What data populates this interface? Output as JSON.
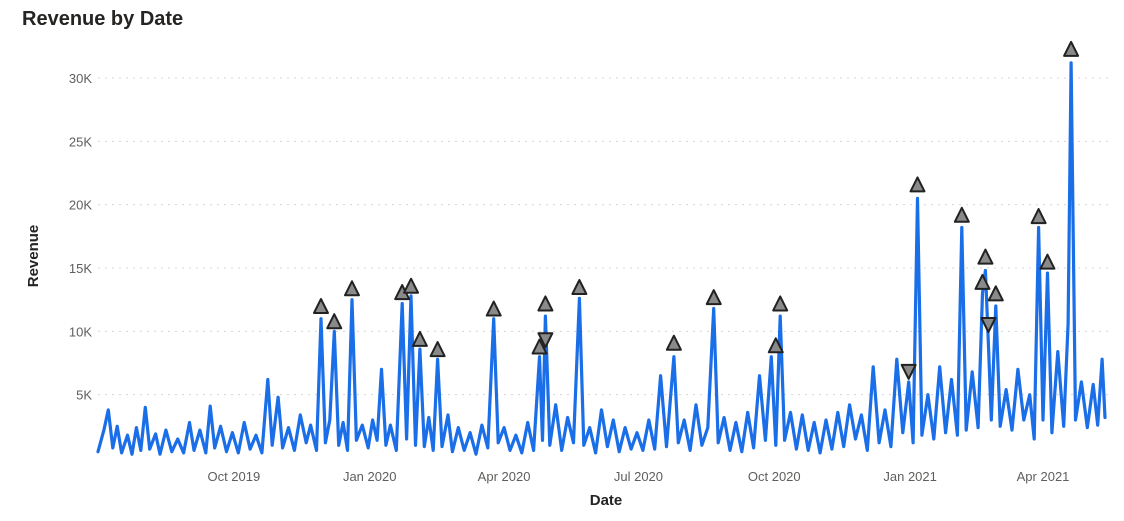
{
  "chart_data": {
    "type": "line",
    "title": "Revenue by Date",
    "xlabel": "Date",
    "ylabel": "Revenue",
    "ylim": [
      0,
      33000
    ],
    "xlim": [
      "2019-07-01",
      "2021-05-15"
    ],
    "yticks": [
      {
        "value": 5000,
        "label": "5K"
      },
      {
        "value": 10000,
        "label": "10K"
      },
      {
        "value": 15000,
        "label": "15K"
      },
      {
        "value": 20000,
        "label": "20K"
      },
      {
        "value": 25000,
        "label": "25K"
      },
      {
        "value": 30000,
        "label": "30K"
      }
    ],
    "xticks": [
      {
        "date": "2019-10-01",
        "label": "Oct 2019"
      },
      {
        "date": "2020-01-01",
        "label": "Jan 2020"
      },
      {
        "date": "2020-04-01",
        "label": "Apr 2020"
      },
      {
        "date": "2020-07-01",
        "label": "Jul 2020"
      },
      {
        "date": "2020-10-01",
        "label": "Oct 2020"
      },
      {
        "date": "2021-01-01",
        "label": "Jan 2021"
      },
      {
        "date": "2021-04-01",
        "label": "Apr 2021"
      }
    ],
    "grid": true,
    "colors": {
      "line": "#1a6ee8",
      "marker_fill": "#8a8a8a",
      "marker_stroke": "#222222",
      "grid": "#d4d4d4"
    },
    "series": [
      {
        "values": [
          [
            "2019-07-01",
            500
          ],
          [
            "2019-07-05",
            2200
          ],
          [
            "2019-07-08",
            3800
          ],
          [
            "2019-07-11",
            800
          ],
          [
            "2019-07-14",
            2500
          ],
          [
            "2019-07-17",
            400
          ],
          [
            "2019-07-21",
            1800
          ],
          [
            "2019-07-24",
            300
          ],
          [
            "2019-07-27",
            2400
          ],
          [
            "2019-07-30",
            600
          ],
          [
            "2019-08-02",
            4000
          ],
          [
            "2019-08-05",
            700
          ],
          [
            "2019-08-09",
            1900
          ],
          [
            "2019-08-12",
            300
          ],
          [
            "2019-08-16",
            2200
          ],
          [
            "2019-08-20",
            500
          ],
          [
            "2019-08-24",
            1500
          ],
          [
            "2019-08-28",
            400
          ],
          [
            "2019-09-01",
            2800
          ],
          [
            "2019-09-04",
            600
          ],
          [
            "2019-09-08",
            2200
          ],
          [
            "2019-09-12",
            400
          ],
          [
            "2019-09-15",
            4100
          ],
          [
            "2019-09-18",
            800
          ],
          [
            "2019-09-22",
            2500
          ],
          [
            "2019-09-26",
            500
          ],
          [
            "2019-09-30",
            2000
          ],
          [
            "2019-10-04",
            400
          ],
          [
            "2019-10-08",
            2800
          ],
          [
            "2019-10-12",
            700
          ],
          [
            "2019-10-16",
            1800
          ],
          [
            "2019-10-20",
            400
          ],
          [
            "2019-10-24",
            6200
          ],
          [
            "2019-10-27",
            1000
          ],
          [
            "2019-10-31",
            4800
          ],
          [
            "2019-11-03",
            800
          ],
          [
            "2019-11-07",
            2400
          ],
          [
            "2019-11-11",
            600
          ],
          [
            "2019-11-15",
            3400
          ],
          [
            "2019-11-19",
            1200
          ],
          [
            "2019-11-22",
            2600
          ],
          [
            "2019-11-26",
            600
          ],
          [
            "2019-11-29",
            11000
          ],
          [
            "2019-12-02",
            1200
          ],
          [
            "2019-12-05",
            3000
          ],
          [
            "2019-12-08",
            10000
          ],
          [
            "2019-12-11",
            1000
          ],
          [
            "2019-12-14",
            2800
          ],
          [
            "2019-12-17",
            600
          ],
          [
            "2019-12-20",
            12500
          ],
          [
            "2019-12-23",
            1400
          ],
          [
            "2019-12-27",
            2600
          ],
          [
            "2019-12-31",
            800
          ],
          [
            "2020-01-03",
            3000
          ],
          [
            "2020-01-06",
            1400
          ],
          [
            "2020-01-09",
            7000
          ],
          [
            "2020-01-12",
            1000
          ],
          [
            "2020-01-15",
            2600
          ],
          [
            "2020-01-19",
            600
          ],
          [
            "2020-01-23",
            12200
          ],
          [
            "2020-01-26",
            1500
          ],
          [
            "2020-01-29",
            12800
          ],
          [
            "2020-02-01",
            1000
          ],
          [
            "2020-02-04",
            8600
          ],
          [
            "2020-02-07",
            900
          ],
          [
            "2020-02-10",
            3200
          ],
          [
            "2020-02-13",
            600
          ],
          [
            "2020-02-16",
            7800
          ],
          [
            "2020-02-19",
            900
          ],
          [
            "2020-02-23",
            3400
          ],
          [
            "2020-02-26",
            500
          ],
          [
            "2020-03-01",
            2400
          ],
          [
            "2020-03-05",
            600
          ],
          [
            "2020-03-09",
            2000
          ],
          [
            "2020-03-13",
            300
          ],
          [
            "2020-03-17",
            2600
          ],
          [
            "2020-03-21",
            800
          ],
          [
            "2020-03-25",
            11000
          ],
          [
            "2020-03-28",
            1200
          ],
          [
            "2020-04-01",
            2400
          ],
          [
            "2020-04-05",
            600
          ],
          [
            "2020-04-09",
            1800
          ],
          [
            "2020-04-13",
            400
          ],
          [
            "2020-04-17",
            2800
          ],
          [
            "2020-04-21",
            600
          ],
          [
            "2020-04-25",
            8000
          ],
          [
            "2020-04-27",
            1400
          ],
          [
            "2020-04-29",
            11200
          ],
          [
            "2020-05-02",
            1000
          ],
          [
            "2020-05-06",
            4200
          ],
          [
            "2020-05-10",
            600
          ],
          [
            "2020-05-14",
            3200
          ],
          [
            "2020-05-18",
            1200
          ],
          [
            "2020-05-22",
            12600
          ],
          [
            "2020-05-25",
            1000
          ],
          [
            "2020-05-29",
            2400
          ],
          [
            "2020-06-02",
            400
          ],
          [
            "2020-06-06",
            3800
          ],
          [
            "2020-06-10",
            900
          ],
          [
            "2020-06-14",
            3000
          ],
          [
            "2020-06-18",
            500
          ],
          [
            "2020-06-22",
            2400
          ],
          [
            "2020-06-26",
            700
          ],
          [
            "2020-06-30",
            2000
          ],
          [
            "2020-07-04",
            600
          ],
          [
            "2020-07-08",
            3000
          ],
          [
            "2020-07-12",
            700
          ],
          [
            "2020-07-16",
            6500
          ],
          [
            "2020-07-20",
            900
          ],
          [
            "2020-07-25",
            8000
          ],
          [
            "2020-07-28",
            1200
          ],
          [
            "2020-08-01",
            3000
          ],
          [
            "2020-08-05",
            600
          ],
          [
            "2020-08-09",
            4200
          ],
          [
            "2020-08-13",
            1000
          ],
          [
            "2020-08-17",
            2400
          ],
          [
            "2020-08-21",
            11800
          ],
          [
            "2020-08-24",
            1200
          ],
          [
            "2020-08-28",
            3200
          ],
          [
            "2020-09-01",
            600
          ],
          [
            "2020-09-05",
            2800
          ],
          [
            "2020-09-09",
            500
          ],
          [
            "2020-09-13",
            3600
          ],
          [
            "2020-09-17",
            800
          ],
          [
            "2020-09-21",
            6500
          ],
          [
            "2020-09-25",
            1400
          ],
          [
            "2020-09-29",
            8000
          ],
          [
            "2020-10-02",
            1000
          ],
          [
            "2020-10-05",
            11200
          ],
          [
            "2020-10-08",
            1400
          ],
          [
            "2020-10-12",
            3600
          ],
          [
            "2020-10-16",
            700
          ],
          [
            "2020-10-20",
            3400
          ],
          [
            "2020-10-24",
            600
          ],
          [
            "2020-10-28",
            2800
          ],
          [
            "2020-11-01",
            400
          ],
          [
            "2020-11-05",
            3000
          ],
          [
            "2020-11-09",
            700
          ],
          [
            "2020-11-13",
            3600
          ],
          [
            "2020-11-17",
            900
          ],
          [
            "2020-11-21",
            4200
          ],
          [
            "2020-11-25",
            1500
          ],
          [
            "2020-11-29",
            3400
          ],
          [
            "2020-12-03",
            600
          ],
          [
            "2020-12-07",
            7200
          ],
          [
            "2020-12-11",
            1200
          ],
          [
            "2020-12-15",
            3800
          ],
          [
            "2020-12-19",
            900
          ],
          [
            "2020-12-23",
            7800
          ],
          [
            "2020-12-27",
            2000
          ],
          [
            "2020-12-31",
            6000
          ],
          [
            "2021-01-03",
            1200
          ],
          [
            "2021-01-06",
            20500
          ],
          [
            "2021-01-09",
            1800
          ],
          [
            "2021-01-13",
            5000
          ],
          [
            "2021-01-17",
            1500
          ],
          [
            "2021-01-21",
            7200
          ],
          [
            "2021-01-25",
            2000
          ],
          [
            "2021-01-29",
            6200
          ],
          [
            "2021-02-02",
            1800
          ],
          [
            "2021-02-05",
            18200
          ],
          [
            "2021-02-08",
            2200
          ],
          [
            "2021-02-12",
            6800
          ],
          [
            "2021-02-16",
            2400
          ],
          [
            "2021-02-19",
            13000
          ],
          [
            "2021-02-21",
            14800
          ],
          [
            "2021-02-23",
            9000
          ],
          [
            "2021-02-25",
            3000
          ],
          [
            "2021-02-28",
            12000
          ],
          [
            "2021-03-03",
            2500
          ],
          [
            "2021-03-07",
            5400
          ],
          [
            "2021-03-11",
            2200
          ],
          [
            "2021-03-15",
            7000
          ],
          [
            "2021-03-19",
            3000
          ],
          [
            "2021-03-23",
            5000
          ],
          [
            "2021-03-26",
            1500
          ],
          [
            "2021-03-29",
            18200
          ],
          [
            "2021-04-01",
            3000
          ],
          [
            "2021-04-04",
            14600
          ],
          [
            "2021-04-07",
            2000
          ],
          [
            "2021-04-11",
            8400
          ],
          [
            "2021-04-15",
            2500
          ],
          [
            "2021-04-18",
            10600
          ],
          [
            "2021-04-20",
            31200
          ],
          [
            "2021-04-23",
            3000
          ],
          [
            "2021-04-27",
            6000
          ],
          [
            "2021-05-01",
            2400
          ],
          [
            "2021-05-05",
            5800
          ],
          [
            "2021-05-08",
            2600
          ],
          [
            "2021-05-11",
            7800
          ],
          [
            "2021-05-13",
            3200
          ]
        ]
      }
    ],
    "anomalies": [
      {
        "date": "2019-11-29",
        "value": 12000,
        "direction": "up"
      },
      {
        "date": "2019-12-08",
        "value": 10800,
        "direction": "up"
      },
      {
        "date": "2019-12-20",
        "value": 13400,
        "direction": "up"
      },
      {
        "date": "2020-01-23",
        "value": 13100,
        "direction": "up"
      },
      {
        "date": "2020-01-29",
        "value": 13600,
        "direction": "up"
      },
      {
        "date": "2020-02-04",
        "value": 9400,
        "direction": "up"
      },
      {
        "date": "2020-02-16",
        "value": 8600,
        "direction": "up"
      },
      {
        "date": "2020-03-25",
        "value": 11800,
        "direction": "up"
      },
      {
        "date": "2020-04-25",
        "value": 8800,
        "direction": "up"
      },
      {
        "date": "2020-04-29",
        "value": 9300,
        "direction": "down"
      },
      {
        "date": "2020-04-29",
        "value": 12200,
        "direction": "up"
      },
      {
        "date": "2020-05-22",
        "value": 13500,
        "direction": "up"
      },
      {
        "date": "2020-07-25",
        "value": 9100,
        "direction": "up"
      },
      {
        "date": "2020-08-21",
        "value": 12700,
        "direction": "up"
      },
      {
        "date": "2020-10-02",
        "value": 8900,
        "direction": "up"
      },
      {
        "date": "2020-10-05",
        "value": 12200,
        "direction": "up"
      },
      {
        "date": "2020-12-31",
        "value": 6800,
        "direction": "down"
      },
      {
        "date": "2021-01-06",
        "value": 21600,
        "direction": "up"
      },
      {
        "date": "2021-02-05",
        "value": 19200,
        "direction": "up"
      },
      {
        "date": "2021-02-19",
        "value": 13900,
        "direction": "up"
      },
      {
        "date": "2021-02-21",
        "value": 15900,
        "direction": "up"
      },
      {
        "date": "2021-02-23",
        "value": 10500,
        "direction": "down"
      },
      {
        "date": "2021-02-28",
        "value": 13000,
        "direction": "up"
      },
      {
        "date": "2021-03-29",
        "value": 19100,
        "direction": "up"
      },
      {
        "date": "2021-04-04",
        "value": 15500,
        "direction": "up"
      },
      {
        "date": "2021-04-20",
        "value": 32300,
        "direction": "up"
      }
    ]
  }
}
